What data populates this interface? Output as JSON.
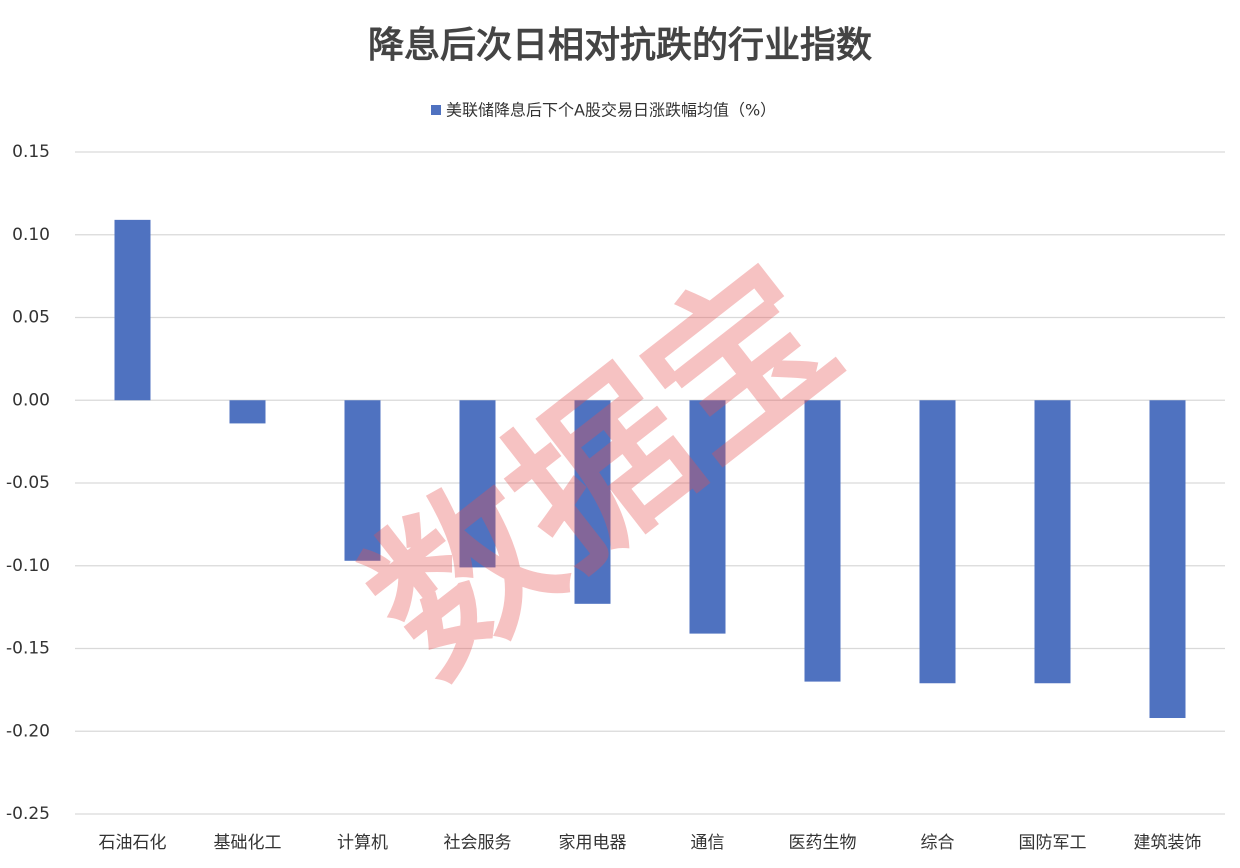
{
  "chart_data": {
    "type": "bar",
    "title": "降息后次日相对抗跌的行业指数",
    "watermark": "数据宝",
    "categories": [
      "石油石化",
      "基础化工",
      "计算机",
      "社会服务",
      "家用电器",
      "通信",
      "医药生物",
      "综合",
      "国防军工",
      "建筑装饰"
    ],
    "series": [
      {
        "name": "美联储降息后下个A股交易日涨跌幅均值（%）",
        "color": "#4f72c0",
        "values": [
          0.109,
          -0.014,
          -0.097,
          -0.101,
          -0.123,
          -0.141,
          -0.17,
          -0.171,
          -0.171,
          -0.192
        ]
      }
    ],
    "ylim": [
      -0.25,
      0.15
    ],
    "yticks": [
      -0.25,
      {
        "value": -0.2,
        "label": "-0.20"
      },
      -0.15,
      {
        "value": -0.1,
        "label": "-0.10"
      },
      -0.05,
      {
        "value": 0,
        "label": "0.00"
      },
      0.05,
      {
        "value": 0.1,
        "label": "0.10"
      },
      0.15
    ],
    "grid": true,
    "legend": "top"
  }
}
